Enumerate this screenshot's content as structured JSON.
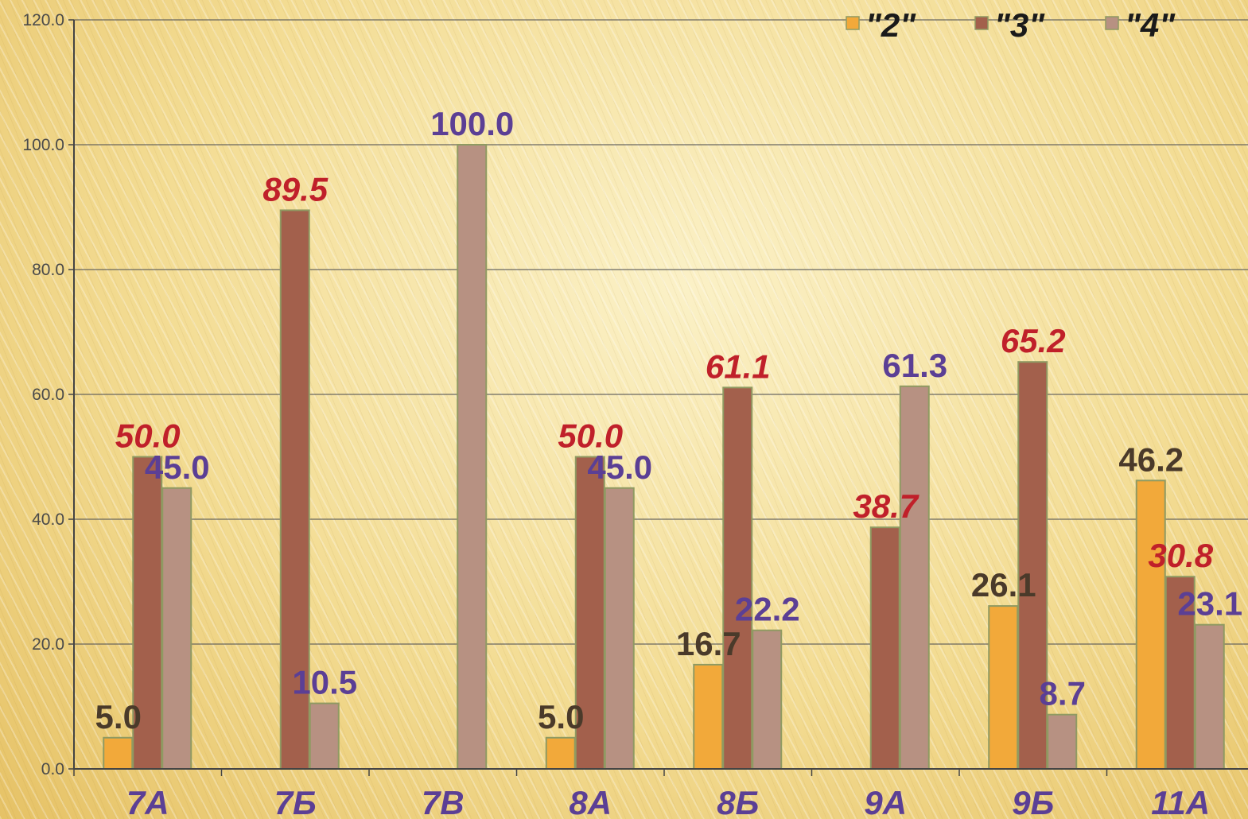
{
  "chart_data": {
    "type": "bar",
    "title": "",
    "xlabel": "",
    "ylabel": "",
    "ylim": [
      0,
      120
    ],
    "yticks": [
      "0.0",
      "20.0",
      "40.0",
      "60.0",
      "80.0",
      "100.0",
      "120.0"
    ],
    "grid": true,
    "legend_position": "top-right",
    "categories": [
      "7А",
      "7Б",
      "7В",
      "8А",
      "8Б",
      "9А",
      "9Б",
      "11А"
    ],
    "series": [
      {
        "name": "\"2\"",
        "color": "#f2a93a",
        "label_color": "#4a3a2a",
        "label_style": "normal",
        "values": [
          5.0,
          0,
          0,
          5.0,
          16.7,
          0,
          26.1,
          46.2
        ],
        "labels": [
          "5.0",
          "",
          "",
          "5.0",
          "16.7",
          "",
          "26.1",
          "46.2"
        ]
      },
      {
        "name": "\"3\"",
        "color": "#a3604c",
        "label_color": "#c0202a",
        "label_style": "italic",
        "values": [
          50.0,
          89.5,
          0,
          50.0,
          61.1,
          38.7,
          65.2,
          30.8
        ],
        "labels": [
          "50.0",
          "89.5",
          "",
          "50.0",
          "61.1",
          "38.7",
          "65.2",
          "30.8"
        ]
      },
      {
        "name": "\"4\"",
        "color": "#b79182",
        "label_color": "#5b3f95",
        "label_style": "normal",
        "values": [
          45.0,
          10.5,
          100.0,
          45.0,
          22.2,
          61.3,
          8.7,
          23.1
        ],
        "labels": [
          "45.0",
          "10.5",
          "100.0",
          "45.0",
          "22.2",
          "61.3",
          "8.7",
          "23.1"
        ]
      }
    ]
  }
}
